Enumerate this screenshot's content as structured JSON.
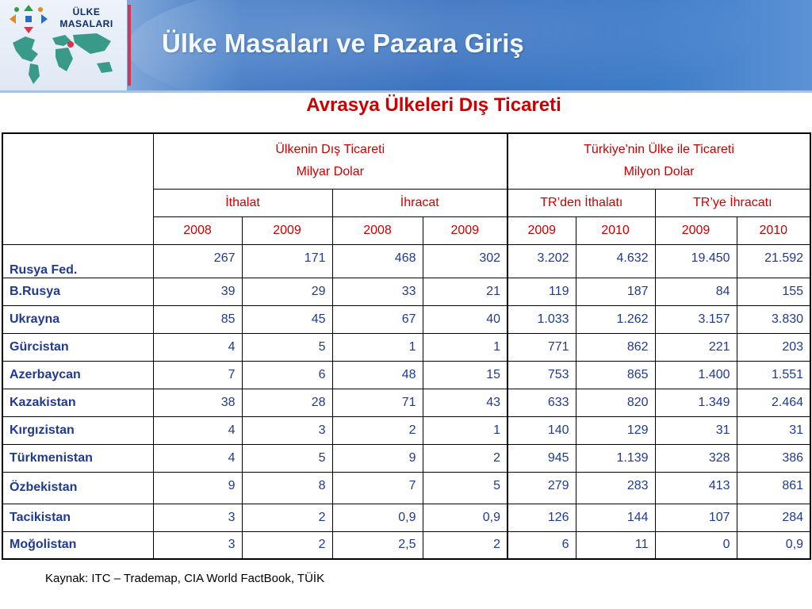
{
  "header": {
    "logo_line1": "ÜLKE",
    "logo_line2": "MASALARI",
    "title": "Ülke Masaları ve Pazara Giriş"
  },
  "subtitle": "Avrasya Ülkeleri Dış Ticareti",
  "table": {
    "group1_line1": "Ülkenin Dış Ticareti",
    "group1_line2": "Milyar Dolar",
    "group2_line1": "Türkiye'nin Ülke ile Ticareti",
    "group2_line2": "Milyon Dolar",
    "sub_headers": [
      "İthalat",
      "İhracat",
      "TR’den İthalatı",
      "TR’ye İhracatı"
    ],
    "years": [
      "2008",
      "2009",
      "2008",
      "2009",
      "2009",
      "2010",
      "2009",
      "2010"
    ],
    "rows": [
      {
        "country": "Rusya Fed.",
        "values": [
          "267",
          "171",
          "468",
          "302",
          "3.202",
          "4.632",
          "19.450",
          "21.592"
        ]
      },
      {
        "country": "B.Rusya",
        "values": [
          "39",
          "29",
          "33",
          "21",
          "119",
          "187",
          "84",
          "155"
        ]
      },
      {
        "country": "Ukrayna",
        "values": [
          "85",
          "45",
          "67",
          "40",
          "1.033",
          "1.262",
          "3.157",
          "3.830"
        ]
      },
      {
        "country": "Gürcistan",
        "values": [
          "4",
          "5",
          "1",
          "1",
          "771",
          "862",
          "221",
          "203"
        ]
      },
      {
        "country": "Azerbaycan",
        "values": [
          "7",
          "6",
          "48",
          "15",
          "753",
          "865",
          "1.400",
          "1.551"
        ]
      },
      {
        "country": "Kazakistan",
        "values": [
          "38",
          "28",
          "71",
          "43",
          "633",
          "820",
          "1.349",
          "2.464"
        ]
      },
      {
        "country": "Kırgızistan",
        "values": [
          "4",
          "3",
          "2",
          "1",
          "140",
          "129",
          "31",
          "31"
        ]
      },
      {
        "country": "Türkmenistan",
        "values": [
          "4",
          "5",
          "9",
          "2",
          "945",
          "1.139",
          "328",
          "386"
        ]
      },
      {
        "country": "Özbekistan",
        "values": [
          "9",
          "8",
          "7",
          "5",
          "279",
          "283",
          "413",
          "861"
        ]
      },
      {
        "country": "Tacikistan",
        "values": [
          "3",
          "2",
          "0,9",
          "0,9",
          "126",
          "144",
          "107",
          "284"
        ]
      },
      {
        "country": "Moğolistan",
        "values": [
          "3",
          "2",
          "2,5",
          "2",
          "6",
          "11",
          "0",
          "0,9"
        ]
      }
    ]
  },
  "source": "Kaynak: ITC – Trademap, CIA World FactBook, TÜİK",
  "colors": {
    "accent": "#cc0000",
    "text_blue": "#1f3a93",
    "banner_blue": "#2f6bbd",
    "divider": "#d7344e"
  },
  "icons": [
    "globe-logo-icon",
    "arrows-logo-icon"
  ]
}
